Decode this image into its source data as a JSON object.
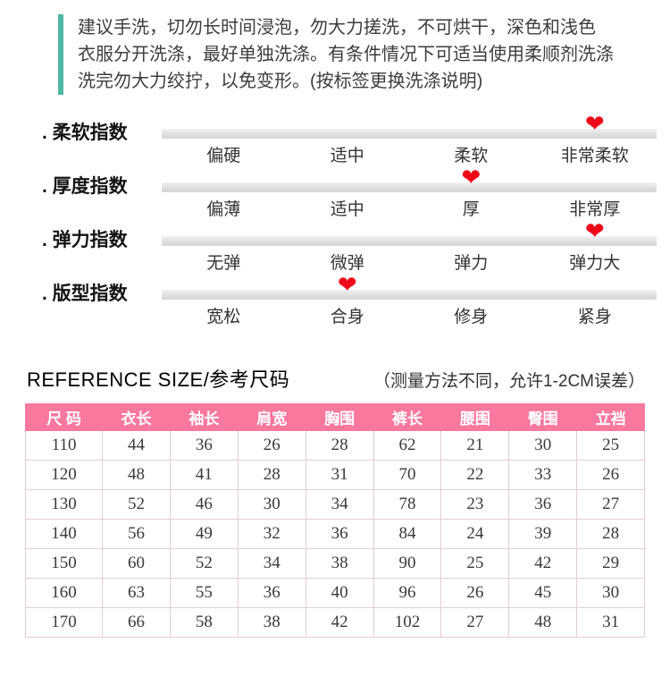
{
  "colors": {
    "teal": "#4db8a4",
    "heart-red": "#ee0718",
    "pink": "#f8789e",
    "table-border": "#e3ccd6"
  },
  "icons": {
    "heart": "❤"
  },
  "notice": {
    "lines": [
      "建议手洗，切勿长时间浸泡，勿大力搓洗，不可烘干，深色和浅色",
      "衣服分开洗涤，最好单独洗涤。有条件情况下可适当使用柔顺剂洗涤",
      "洗完勿大力绞拧，以免变形。(按标签更换洗涤说明)"
    ]
  },
  "indexes": [
    {
      "label": ". 柔软指数",
      "options": [
        "偏硬",
        "适中",
        "柔软",
        "非常柔软"
      ],
      "selected": 3
    },
    {
      "label": ". 厚度指数",
      "options": [
        "偏薄",
        "适中",
        "厚",
        "非常厚"
      ],
      "selected": 2
    },
    {
      "label": ". 弹力指数",
      "options": [
        "无弹",
        "微弹",
        "弹力",
        "弹力大"
      ],
      "selected": 3
    },
    {
      "label": ". 版型指数",
      "options": [
        "宽松",
        "合身",
        "修身",
        "紧身"
      ],
      "selected": 1
    }
  ],
  "reference": {
    "title": "REFERENCE SIZE/参考尺码",
    "note": "（测量方法不同，允许1-2CM误差）"
  },
  "size_table": {
    "headers": [
      "尺 码",
      "衣长",
      "袖长",
      "肩宽",
      "胸围",
      "裤长",
      "腰围",
      "臀围",
      "立裆"
    ],
    "rows": [
      [
        "110",
        "44",
        "36",
        "26",
        "28",
        "62",
        "21",
        "30",
        "25"
      ],
      [
        "120",
        "48",
        "41",
        "28",
        "31",
        "70",
        "22",
        "33",
        "26"
      ],
      [
        "130",
        "52",
        "46",
        "30",
        "34",
        "78",
        "23",
        "36",
        "27"
      ],
      [
        "140",
        "56",
        "49",
        "32",
        "36",
        "84",
        "24",
        "39",
        "28"
      ],
      [
        "150",
        "60",
        "52",
        "34",
        "38",
        "90",
        "25",
        "42",
        "29"
      ],
      [
        "160",
        "63",
        "55",
        "36",
        "40",
        "96",
        "26",
        "45",
        "30"
      ],
      [
        "170",
        "66",
        "58",
        "38",
        "42",
        "102",
        "27",
        "48",
        "31"
      ]
    ]
  }
}
